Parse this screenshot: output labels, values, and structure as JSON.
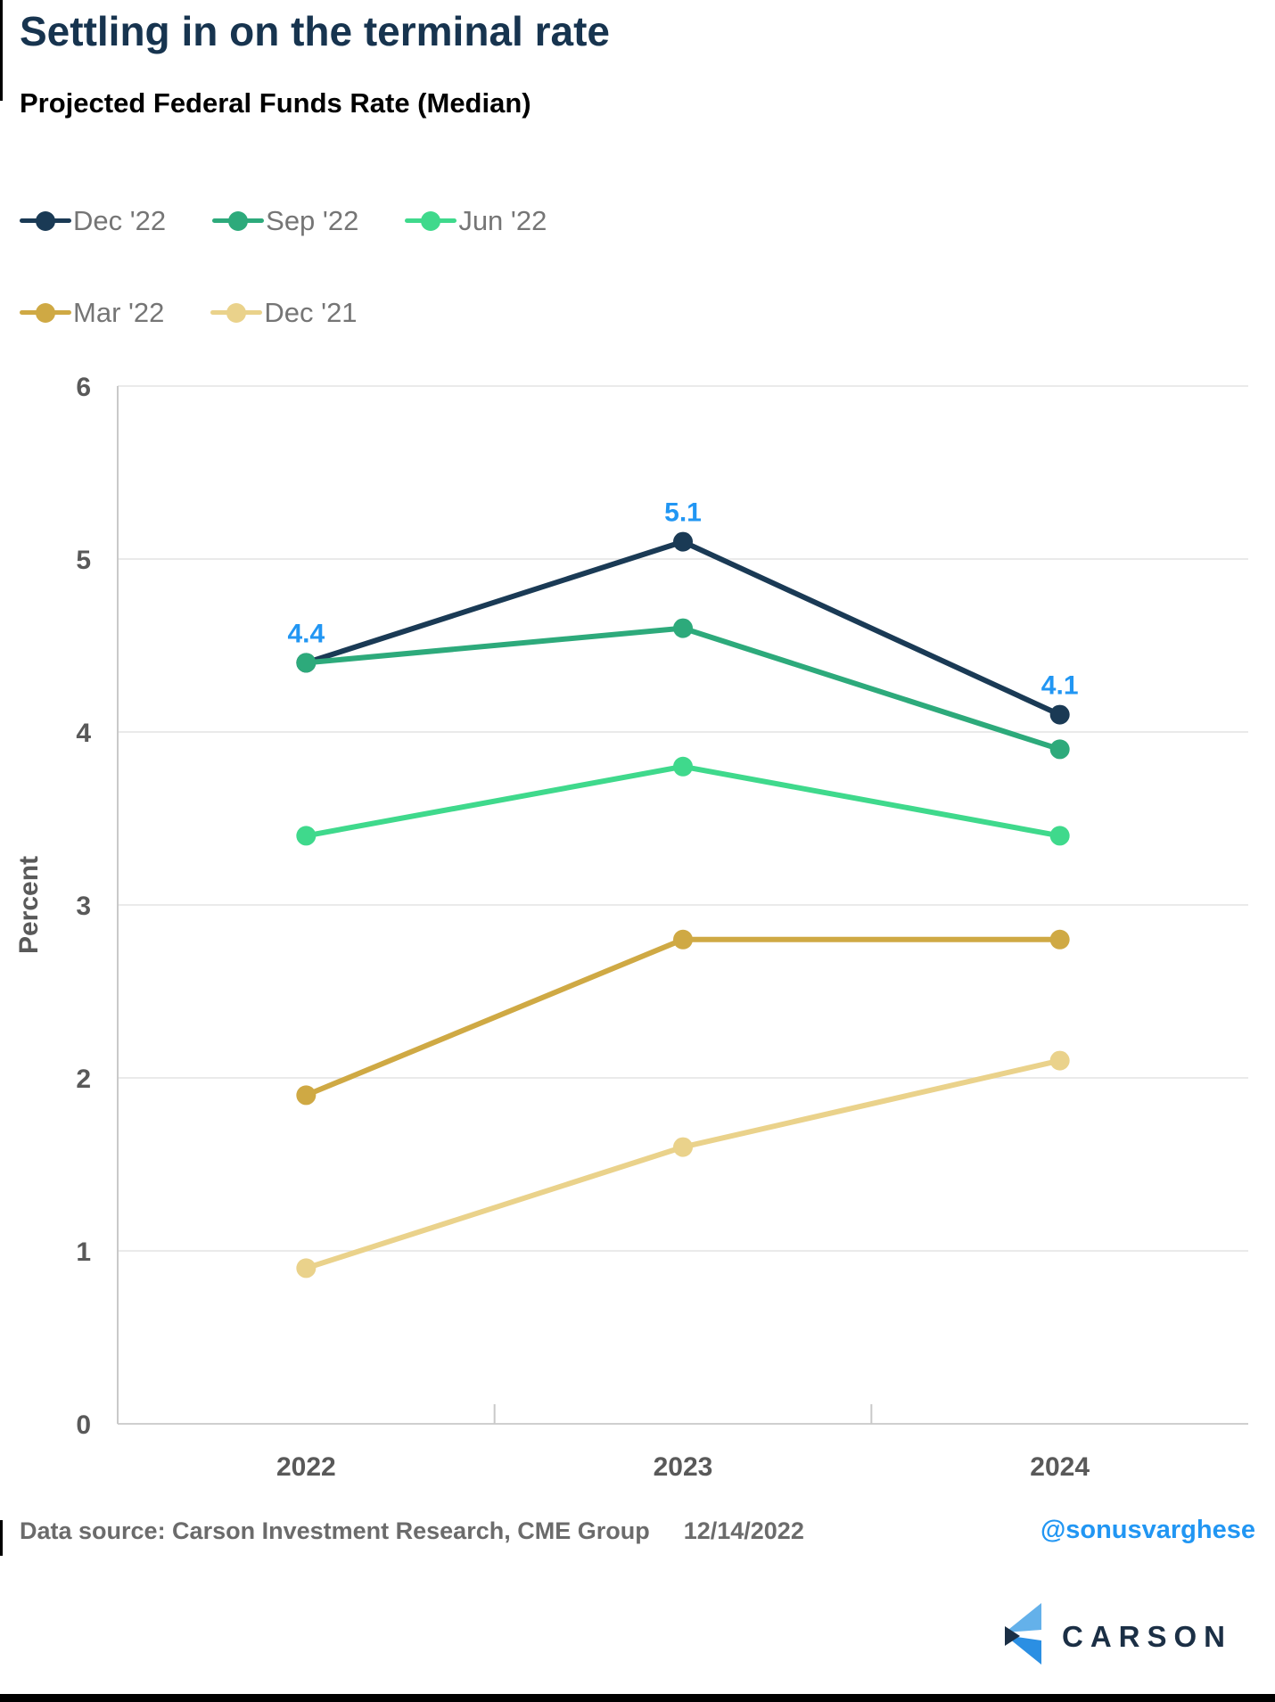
{
  "header": {
    "title": "Settling in on the terminal rate",
    "subtitle": "Projected Federal Funds Rate (Median)"
  },
  "footer": {
    "source": "Data source: Carson Investment Research, CME Group",
    "date": "12/14/2022",
    "handle": "@sonusvarghese"
  },
  "logo": {
    "text": "CARSON"
  },
  "colors": {
    "title_navy": "#17344f",
    "point_label_blue": "#2196f3",
    "gridline": "#e4e4e4",
    "axis_line": "#c9c9c9",
    "tick_text": "#595959",
    "legend_text": "#757575",
    "footer_text": "#6b6b6b",
    "logo_navy": "#1b2f45",
    "logo_blue": "#2b8fe3",
    "logo_light_blue": "#64b1ea"
  },
  "chart_data": {
    "type": "line",
    "title": "Projected Federal Funds Rate (Median)",
    "xlabel": "",
    "ylabel": "Percent",
    "categories": [
      "2022",
      "2023",
      "2024"
    ],
    "ylim": [
      0,
      6
    ],
    "yticks": [
      0,
      1,
      2,
      3,
      4,
      5,
      6
    ],
    "grid": true,
    "legend_position": "top-left, two rows",
    "series": [
      {
        "name": "Dec '22",
        "color": "#1a3a55",
        "values": [
          4.4,
          5.1,
          4.1
        ],
        "point_labels": [
          "4.4",
          "5.1",
          "4.1"
        ],
        "point_label_color": "#2196f3"
      },
      {
        "name": "Sep '22",
        "color": "#2daa7b",
        "values": [
          4.4,
          4.6,
          3.9
        ]
      },
      {
        "name": "Jun '22",
        "color": "#3fd98c",
        "values": [
          3.4,
          3.8,
          3.4
        ]
      },
      {
        "name": "Mar '22",
        "color": "#cfa944",
        "values": [
          1.9,
          2.8,
          2.8
        ]
      },
      {
        "name": "Dec '21",
        "color": "#ead28b",
        "values": [
          0.9,
          1.6,
          2.1
        ]
      }
    ]
  }
}
